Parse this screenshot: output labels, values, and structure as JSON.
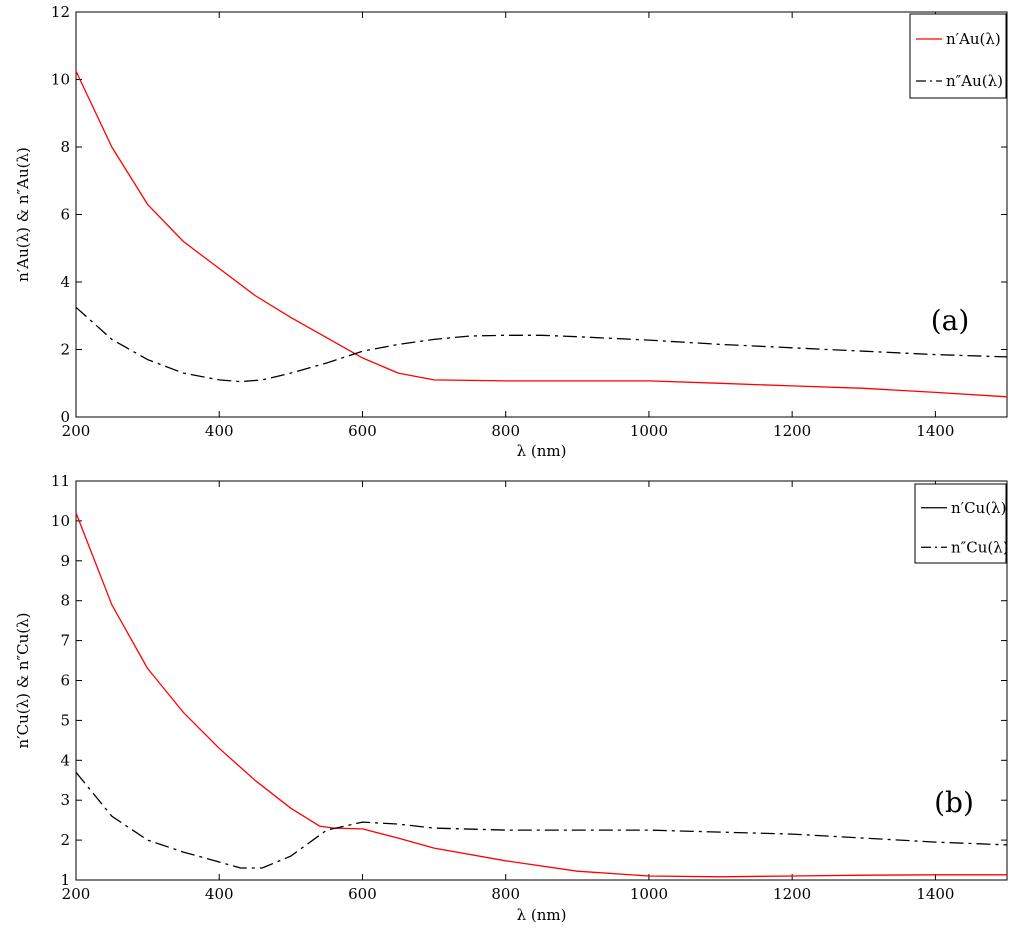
{
  "figure": {
    "panels": [
      "a",
      "b"
    ]
  },
  "chart_data": [
    {
      "type": "line",
      "panel_label": "(a)",
      "xlabel": "λ (nm)",
      "ylabel": "n′Au(λ) & n″Au(λ)",
      "xlim": [
        200,
        1500
      ],
      "ylim": [
        0,
        12
      ],
      "xticks": [
        200,
        400,
        600,
        800,
        1000,
        1200,
        1400
      ],
      "yticks": [
        0,
        2,
        4,
        6,
        8,
        10,
        12
      ],
      "grid": false,
      "legend_position": "top-right",
      "series": [
        {
          "name": "n′Au(λ)",
          "color": "#ff0000",
          "style": "solid",
          "x": [
            200,
            250,
            300,
            350,
            400,
            450,
            500,
            550,
            600,
            650,
            700,
            800,
            900,
            1000,
            1100,
            1200,
            1300,
            1400,
            1500
          ],
          "y": [
            10.25,
            8.0,
            6.3,
            5.2,
            4.4,
            3.6,
            2.95,
            2.35,
            1.75,
            1.3,
            1.1,
            1.07,
            1.07,
            1.07,
            1.0,
            0.92,
            0.85,
            0.73,
            0.6
          ]
        },
        {
          "name": "n″Au(λ)",
          "color": "#000000",
          "style": "dashdot",
          "x": [
            200,
            250,
            300,
            350,
            400,
            430,
            460,
            500,
            550,
            600,
            650,
            700,
            750,
            800,
            850,
            900,
            1000,
            1100,
            1200,
            1300,
            1400,
            1500
          ],
          "y": [
            3.25,
            2.3,
            1.7,
            1.3,
            1.1,
            1.05,
            1.1,
            1.3,
            1.6,
            1.95,
            2.15,
            2.3,
            2.4,
            2.42,
            2.42,
            2.38,
            2.28,
            2.15,
            2.05,
            1.95,
            1.85,
            1.78
          ]
        }
      ]
    },
    {
      "type": "line",
      "panel_label": "(b)",
      "xlabel": "λ (nm)",
      "ylabel": "n′Cu(λ) & n″Cu(λ)",
      "xlim": [
        200,
        1500
      ],
      "ylim": [
        1,
        11
      ],
      "xticks": [
        200,
        400,
        600,
        800,
        1000,
        1200,
        1400
      ],
      "yticks": [
        1,
        2,
        3,
        4,
        5,
        6,
        7,
        8,
        9,
        10,
        11
      ],
      "grid": false,
      "legend_position": "top-right",
      "series": [
        {
          "name": "n′Cu(λ)",
          "color": "#ff0000",
          "legend_color": "#000000",
          "style": "solid",
          "x": [
            200,
            250,
            300,
            350,
            400,
            450,
            500,
            540,
            560,
            600,
            650,
            700,
            800,
            900,
            1000,
            1100,
            1200,
            1300,
            1400,
            1500
          ],
          "y": [
            10.2,
            7.9,
            6.3,
            5.2,
            4.3,
            3.5,
            2.8,
            2.35,
            2.3,
            2.28,
            2.05,
            1.8,
            1.48,
            1.22,
            1.1,
            1.08,
            1.1,
            1.12,
            1.13,
            1.13
          ]
        },
        {
          "name": "n″Cu(λ)",
          "color": "#000000",
          "style": "dashdot",
          "x": [
            200,
            250,
            300,
            350,
            400,
            430,
            460,
            500,
            550,
            600,
            650,
            700,
            800,
            900,
            1000,
            1100,
            1200,
            1300,
            1400,
            1500
          ],
          "y": [
            3.7,
            2.6,
            2.0,
            1.7,
            1.45,
            1.3,
            1.3,
            1.6,
            2.25,
            2.45,
            2.4,
            2.3,
            2.25,
            2.25,
            2.25,
            2.2,
            2.15,
            2.05,
            1.95,
            1.88
          ]
        }
      ]
    }
  ]
}
